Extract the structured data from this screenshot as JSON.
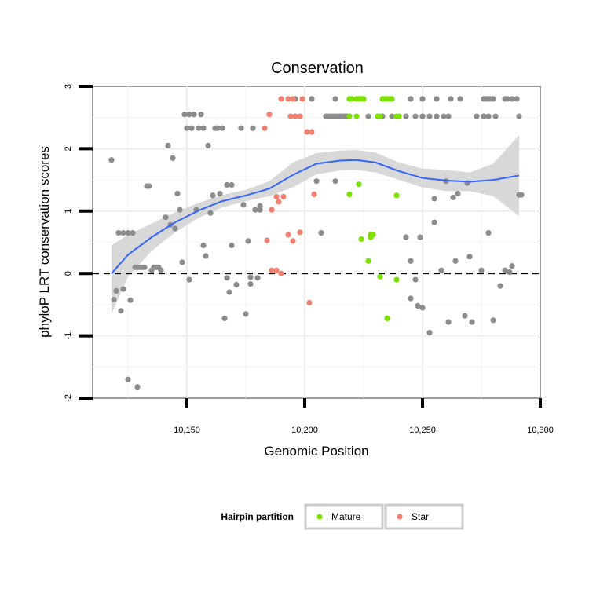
{
  "chart_data": {
    "type": "scatter",
    "title": "Conservation",
    "xlabel": "Genomic Position",
    "ylabel": "phyloP LRT conservation scores",
    "xlim": [
      10110,
      10300
    ],
    "ylim": [
      -2,
      3
    ],
    "x_ticks": [
      10150,
      10200,
      10250,
      10300
    ],
    "x_tick_labels": [
      "10,150",
      "10,200",
      "10,250",
      "10,300"
    ],
    "y_ticks": [
      -2,
      -1,
      0,
      1,
      2,
      3
    ],
    "y_tick_labels": [
      "-2",
      "-1",
      "0",
      "1",
      "2",
      "3"
    ],
    "reference_line": {
      "y": 0,
      "style": "dashed"
    },
    "legend": {
      "title": "Hairpin partition",
      "position": "bottom",
      "entries": [
        {
          "label": "Mature",
          "color": "#7CE000"
        },
        {
          "label": "Star",
          "color": "#F08070"
        }
      ]
    },
    "colors": {
      "other": "#8C8C8C",
      "Mature": "#7CE000",
      "Star": "#F08070",
      "smooth": "#3366FF",
      "band": "#D6D6D6"
    },
    "series": [
      {
        "name": "Other",
        "points": [
          [
            10118,
            1.82
          ],
          [
            10119,
            -0.42
          ],
          [
            10120,
            -0.28
          ],
          [
            10121,
            0.65
          ],
          [
            10122,
            -0.6
          ],
          [
            10123,
            0.65
          ],
          [
            10123,
            -0.25
          ],
          [
            10125,
            0.65
          ],
          [
            10125,
            -1.7
          ],
          [
            10126,
            -0.43
          ],
          [
            10127,
            0.65
          ],
          [
            10128,
            0.1
          ],
          [
            10129,
            0.1
          ],
          [
            10129,
            -1.82
          ],
          [
            10130,
            0.1
          ],
          [
            10131,
            0.1
          ],
          [
            10132,
            0.1
          ],
          [
            10133,
            1.4
          ],
          [
            10134,
            1.4
          ],
          [
            10135,
            0.05
          ],
          [
            10136,
            0.1
          ],
          [
            10137,
            0.1
          ],
          [
            10138,
            0.1
          ],
          [
            10139,
            0.05
          ],
          [
            10141,
            0.9
          ],
          [
            10142,
            2.05
          ],
          [
            10143,
            0.78
          ],
          [
            10144,
            1.85
          ],
          [
            10145,
            0.72
          ],
          [
            10146,
            1.28
          ],
          [
            10147,
            1.02
          ],
          [
            10148,
            0.18
          ],
          [
            10149,
            2.55
          ],
          [
            10150,
            2.33
          ],
          [
            10151,
            2.55
          ],
          [
            10151,
            -0.1
          ],
          [
            10152,
            2.33
          ],
          [
            10153,
            2.55
          ],
          [
            10154,
            1.02
          ],
          [
            10155,
            2.33
          ],
          [
            10156,
            2.55
          ],
          [
            10157,
            2.33
          ],
          [
            10157,
            0.45
          ],
          [
            10158,
            0.28
          ],
          [
            10159,
            2.05
          ],
          [
            10160,
            0.97
          ],
          [
            10161,
            1.25
          ],
          [
            10162,
            2.33
          ],
          [
            10163,
            2.33
          ],
          [
            10164,
            1.28
          ],
          [
            10165,
            2.33
          ],
          [
            10166,
            -0.72
          ],
          [
            10167,
            1.42
          ],
          [
            10167,
            -0.07
          ],
          [
            10168,
            -0.3
          ],
          [
            10169,
            1.42
          ],
          [
            10169,
            0.45
          ],
          [
            10171,
            -0.18
          ],
          [
            10173,
            2.33
          ],
          [
            10174,
            1.1
          ],
          [
            10175,
            -0.65
          ],
          [
            10176,
            0.52
          ],
          [
            10177,
            -0.17
          ],
          [
            10177,
            -0.06
          ],
          [
            10178,
            2.33
          ],
          [
            10179,
            1.02
          ],
          [
            10180,
            -0.07
          ],
          [
            10181,
            1.08
          ],
          [
            10181,
            1.02
          ],
          [
            10207,
            0.65
          ],
          [
            10205,
            1.48
          ],
          [
            10213,
            1.48
          ],
          [
            10243,
            0.58
          ],
          [
            10245,
            0.2
          ],
          [
            10245,
            -0.4
          ],
          [
            10247,
            -0.1
          ],
          [
            10248,
            -0.52
          ],
          [
            10249,
            0.58
          ],
          [
            10250,
            -0.55
          ],
          [
            10253,
            -0.95
          ],
          [
            10255,
            0.82
          ],
          [
            10255,
            1.2
          ],
          [
            10258,
            0.05
          ],
          [
            10260,
            1.48
          ],
          [
            10261,
            -0.78
          ],
          [
            10263,
            1.22
          ],
          [
            10264,
            0.2
          ],
          [
            10265,
            1.28
          ],
          [
            10268,
            -0.68
          ],
          [
            10269,
            1.45
          ],
          [
            10270,
            0.27
          ],
          [
            10271,
            -0.78
          ],
          [
            10275,
            0.05
          ],
          [
            10278,
            0.65
          ],
          [
            10280,
            -0.75
          ],
          [
            10283,
            -0.2
          ],
          [
            10285,
            0.05
          ],
          [
            10287,
            0.02
          ],
          [
            10288,
            0.12
          ],
          [
            10291,
            1.26
          ],
          [
            10292,
            1.26
          ],
          [
            10196,
            2.8
          ],
          [
            10203,
            2.8
          ],
          [
            10213,
            2.8
          ],
          [
            10245,
            2.8
          ],
          [
            10250,
            2.8
          ],
          [
            10256,
            2.8
          ],
          [
            10262,
            2.8
          ],
          [
            10266,
            2.8
          ],
          [
            10276,
            2.8
          ],
          [
            10277,
            2.8
          ],
          [
            10278,
            2.8
          ],
          [
            10279,
            2.8
          ],
          [
            10280,
            2.8
          ],
          [
            10285,
            2.8
          ],
          [
            10286,
            2.8
          ],
          [
            10288,
            2.8
          ],
          [
            10290,
            2.8
          ],
          [
            10209,
            2.52
          ],
          [
            10210,
            2.52
          ],
          [
            10211,
            2.52
          ],
          [
            10212,
            2.52
          ],
          [
            10213,
            2.52
          ],
          [
            10214,
            2.52
          ],
          [
            10215,
            2.52
          ],
          [
            10216,
            2.52
          ],
          [
            10217,
            2.52
          ],
          [
            10218,
            2.52
          ],
          [
            10227,
            2.52
          ],
          [
            10233,
            2.52
          ],
          [
            10237,
            2.52
          ],
          [
            10243,
            2.52
          ],
          [
            10247,
            2.52
          ],
          [
            10250,
            2.52
          ],
          [
            10253,
            2.52
          ],
          [
            10256,
            2.52
          ],
          [
            10259,
            2.52
          ],
          [
            10261,
            2.52
          ],
          [
            10273,
            2.52
          ],
          [
            10276,
            2.52
          ],
          [
            10278,
            2.52
          ],
          [
            10281,
            2.52
          ],
          [
            10291,
            2.52
          ]
        ]
      },
      {
        "name": "Mature",
        "points": [
          [
            10219,
            2.8
          ],
          [
            10220,
            2.8
          ],
          [
            10222,
            2.8
          ],
          [
            10223,
            2.8
          ],
          [
            10224,
            2.8
          ],
          [
            10225,
            2.8
          ],
          [
            10233,
            2.8
          ],
          [
            10234,
            2.8
          ],
          [
            10235,
            2.8
          ],
          [
            10236,
            2.8
          ],
          [
            10237,
            2.8
          ],
          [
            10219,
            2.52
          ],
          [
            10222,
            2.52
          ],
          [
            10231,
            2.52
          ],
          [
            10232,
            2.52
          ],
          [
            10239,
            2.52
          ],
          [
            10240,
            2.52
          ],
          [
            10223,
            1.43
          ],
          [
            10219,
            1.27
          ],
          [
            10239,
            1.25
          ],
          [
            10224,
            0.55
          ],
          [
            10229,
            0.62
          ],
          [
            10228,
            0.58
          ],
          [
            10228,
            0.62
          ],
          [
            10227,
            0.2
          ],
          [
            10232,
            -0.05
          ],
          [
            10239,
            -0.1
          ],
          [
            10235,
            -0.72
          ]
        ]
      },
      {
        "name": "Star",
        "points": [
          [
            10190,
            2.8
          ],
          [
            10193,
            2.8
          ],
          [
            10195,
            2.8
          ],
          [
            10199,
            2.8
          ],
          [
            10185,
            2.55
          ],
          [
            10194,
            2.52
          ],
          [
            10196,
            2.52
          ],
          [
            10198,
            2.52
          ],
          [
            10183,
            2.33
          ],
          [
            10201,
            2.27
          ],
          [
            10203,
            2.27
          ],
          [
            10204,
            1.27
          ],
          [
            10186,
            1.02
          ],
          [
            10188,
            1.23
          ],
          [
            10189,
            1.15
          ],
          [
            10191,
            1.23
          ],
          [
            10184,
            0.53
          ],
          [
            10193,
            0.62
          ],
          [
            10195,
            0.52
          ],
          [
            10198,
            0.66
          ],
          [
            10186,
            0.05
          ],
          [
            10188,
            0.05
          ],
          [
            10190,
            0.0
          ],
          [
            10202,
            -0.47
          ]
        ]
      }
    ],
    "smooth": {
      "x": [
        10118,
        10125,
        10135,
        10145,
        10155,
        10165,
        10175,
        10185,
        10195,
        10205,
        10215,
        10222,
        10230,
        10240,
        10250,
        10260,
        10270,
        10280,
        10291
      ],
      "y": [
        0.0,
        0.3,
        0.58,
        0.82,
        1.01,
        1.16,
        1.25,
        1.36,
        1.58,
        1.76,
        1.81,
        1.82,
        1.78,
        1.64,
        1.53,
        1.49,
        1.47,
        1.5,
        1.57
      ],
      "upper": [
        0.45,
        0.62,
        0.8,
        0.98,
        1.13,
        1.26,
        1.34,
        1.48,
        1.78,
        1.93,
        1.97,
        1.98,
        1.94,
        1.78,
        1.68,
        1.66,
        1.62,
        1.76,
        2.22
      ],
      "lower": [
        -0.65,
        -0.05,
        0.36,
        0.66,
        0.89,
        1.06,
        1.16,
        1.24,
        1.38,
        1.59,
        1.65,
        1.66,
        1.62,
        1.5,
        1.38,
        1.32,
        1.32,
        1.24,
        0.92
      ]
    }
  }
}
